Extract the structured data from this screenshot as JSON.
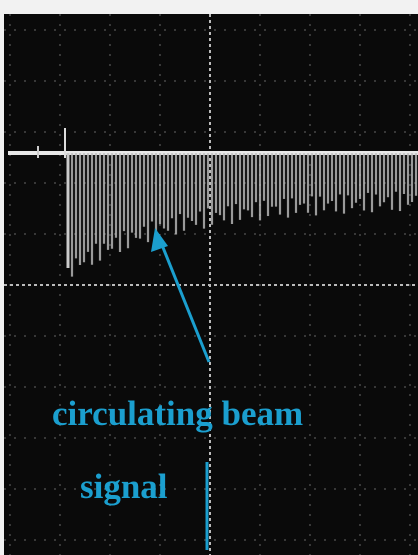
{
  "annotation": {
    "lines": [
      "circulating beam",
      "signal"
    ]
  }
}
